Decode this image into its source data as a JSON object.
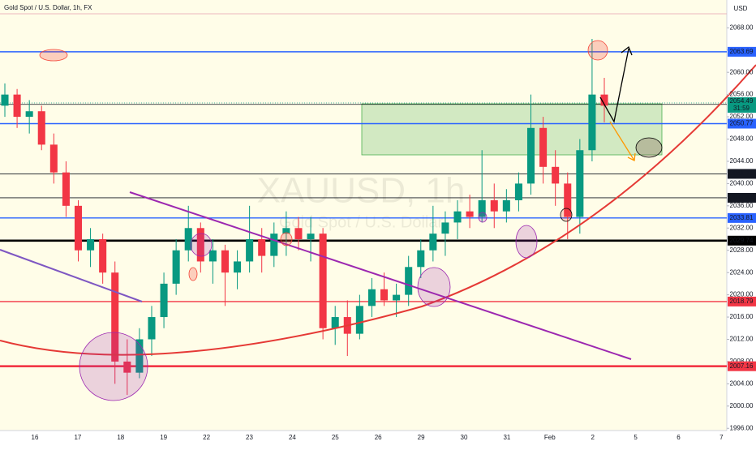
{
  "chart_data": {
    "type": "candlestick",
    "title": "Gold Spot / U.S. Dollar, 1h, FX",
    "watermark": "XAUUSD, 1h",
    "watermark_subtitle": "Gold Spot / U.S. Dollar",
    "currency": "USD",
    "countdown": "31:59",
    "up_color": "#089981",
    "down_color": "#f23645",
    "categories": [
      "16",
      "17",
      "18",
      "19",
      "22",
      "23",
      "24",
      "25",
      "26",
      "29",
      "30",
      "31",
      "Feb",
      "2",
      "5",
      "6",
      "7"
    ],
    "open": [
      2054,
      2056,
      2052,
      2053,
      2047,
      2042,
      2036,
      2028,
      2030,
      2024,
      2008,
      2006,
      2012,
      2016,
      2022,
      2028,
      2032,
      2026,
      2028,
      2024,
      2026,
      2030,
      2027,
      2031,
      2032,
      2030,
      2031,
      2014,
      2016,
      2013,
      2018,
      2021,
      2019,
      2020,
      2025,
      2028,
      2031,
      2033,
      2035,
      2034,
      2037,
      2035,
      2037,
      2040,
      2050,
      2043,
      2040,
      2034,
      2046,
      2056
    ],
    "high": [
      2058,
      2057,
      2055,
      2054,
      2049,
      2044,
      2037,
      2032,
      2031,
      2026,
      2012,
      2014,
      2018,
      2024,
      2030,
      2036,
      2033,
      2030,
      2029,
      2028,
      2036,
      2032,
      2033,
      2035,
      2034,
      2034,
      2032,
      2018,
      2019,
      2020,
      2023,
      2024,
      2022,
      2027,
      2030,
      2036,
      2035,
      2037,
      2038,
      2046,
      2040,
      2039,
      2042,
      2056,
      2052,
      2046,
      2042,
      2048,
      2066,
      2059
    ],
    "low": [
      2052,
      2050,
      2049,
      2046,
      2040,
      2034,
      2026,
      2025,
      2022,
      2004,
      2002,
      2005,
      2009,
      2014,
      2020,
      2026,
      2024,
      2022,
      2018,
      2021,
      2024,
      2024,
      2025,
      2027,
      2028,
      2026,
      2012,
      2011,
      2009,
      2012,
      2016,
      2018,
      2016,
      2018,
      2023,
      2026,
      2027,
      2030,
      2032,
      2033,
      2032,
      2033,
      2035,
      2038,
      2040,
      2036,
      2030,
      2031,
      2044,
      2051
    ],
    "close": [
      2056,
      2052,
      2053,
      2047,
      2042,
      2036,
      2028,
      2030,
      2024,
      2008,
      2006,
      2012,
      2016,
      2022,
      2028,
      2032,
      2026,
      2028,
      2024,
      2026,
      2030,
      2027,
      2031,
      2032,
      2030,
      2031,
      2014,
      2016,
      2013,
      2018,
      2021,
      2019,
      2020,
      2025,
      2028,
      2031,
      2033,
      2035,
      2034,
      2037,
      2035,
      2037,
      2040,
      2050,
      2043,
      2040,
      2034,
      2046,
      2056,
      2054
    ],
    "ylim": [
      1995.6,
      2073.0
    ],
    "yticks": [
      {
        "value": 1996,
        "label": "1996.00"
      },
      {
        "value": 2000,
        "label": "2000.00"
      },
      {
        "value": 2004,
        "label": "2004.00"
      },
      {
        "value": 2008,
        "label": "2008.00"
      },
      {
        "value": 2012,
        "label": "2012.00"
      },
      {
        "value": 2016,
        "label": "2016.00"
      },
      {
        "value": 2020,
        "label": "2020.00"
      },
      {
        "value": 2024,
        "label": "2024.00"
      },
      {
        "value": 2028,
        "label": "2028.00"
      },
      {
        "value": 2032,
        "label": "2032.00"
      },
      {
        "value": 2036,
        "label": "2036.00"
      },
      {
        "value": 2040,
        "label": "2040.00"
      },
      {
        "value": 2044,
        "label": "2044.00"
      },
      {
        "value": 2048,
        "label": "2048.00"
      },
      {
        "value": 2052,
        "label": "2052.00"
      },
      {
        "value": 2056,
        "label": "2056.00"
      },
      {
        "value": 2060,
        "label": "2060.00"
      },
      {
        "value": 2064,
        "label": "2064.00"
      },
      {
        "value": 2068,
        "label": "2068.00"
      }
    ],
    "price_levels": [
      {
        "value": 2063.69,
        "color": "#2962ff",
        "weight": "normal"
      },
      {
        "value": 2054.23,
        "color": "#131722",
        "weight": "thin"
      },
      {
        "value": 2050.77,
        "color": "#2962ff",
        "weight": "normal"
      },
      {
        "value": 2041.74,
        "color": "#131722",
        "weight": "thin"
      },
      {
        "value": 2037.44,
        "color": "#131722",
        "weight": "thin"
      },
      {
        "value": 2033.81,
        "color": "#2962ff",
        "weight": "normal"
      },
      {
        "value": 2029.74,
        "color": "#000000",
        "weight": "bold"
      },
      {
        "value": 2018.79,
        "color": "#f23645",
        "weight": "normal"
      },
      {
        "value": 2007.16,
        "color": "#f23645",
        "weight": "bold"
      }
    ],
    "last_price": {
      "value": 2054.49,
      "color": "#089981"
    }
  }
}
